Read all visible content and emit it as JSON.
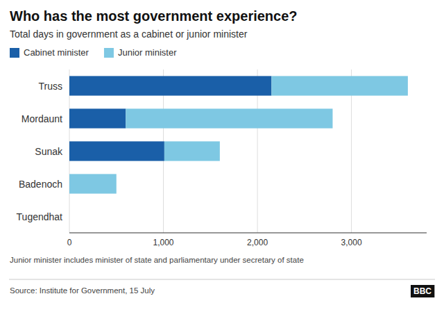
{
  "chart_data": {
    "type": "bar",
    "orientation": "horizontal",
    "stacked": true,
    "title": "Who has the most government experience?",
    "subtitle": "Total days in government as a cabinet or junior minister",
    "categories": [
      "Truss",
      "Mordaunt",
      "Sunak",
      "Badenoch",
      "Tugendhat"
    ],
    "series": [
      {
        "name": "Cabinet minister",
        "color": "#1a5fa8",
        "values": [
          2150,
          600,
          1010,
          0,
          0
        ]
      },
      {
        "name": "Junior minister",
        "color": "#7ec8e3",
        "values": [
          1450,
          2200,
          590,
          500,
          0
        ]
      }
    ],
    "xlim": [
      0,
      3800
    ],
    "xticks": [
      0,
      {
        "value": 1000,
        "label": "1,000"
      },
      {
        "value": 2000,
        "label": "2,000"
      },
      {
        "value": 3000,
        "label": "3,000"
      }
    ],
    "grid": true,
    "legend": "upper left",
    "annotations": [
      "Junior minister includes minister of state and parliamentary under secretary of state",
      "Source: Institute for Government, 15 July",
      "BBC"
    ]
  }
}
